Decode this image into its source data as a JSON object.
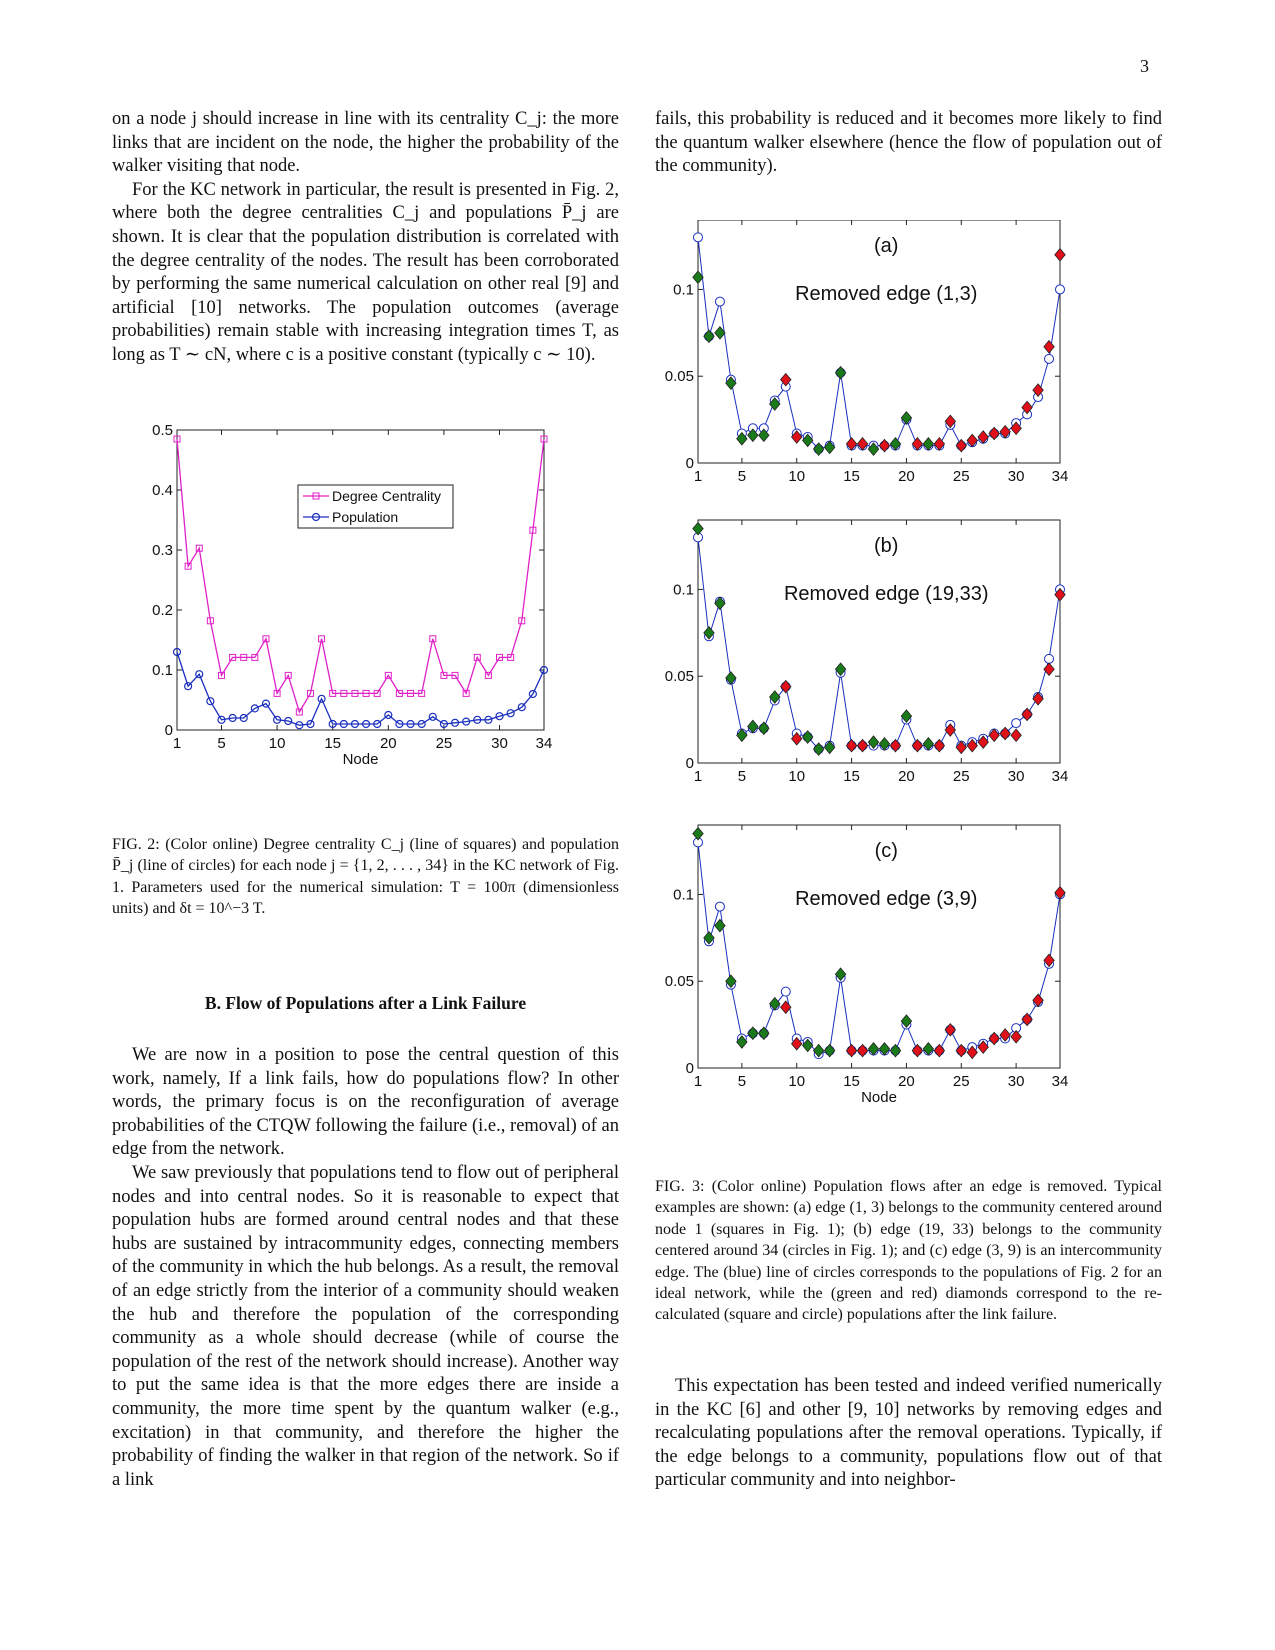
{
  "page": {
    "number": "3"
  },
  "text": {
    "left_top": [
      "on a node j should increase in line with its centrality C_j: the more links that are incident on the node, the higher the probability of the walker visiting that node.",
      "For the KC network in particular, the result is presented in Fig. 2, where both the degree centralities C_j and populations P̄_j are shown. It is clear that the population distribution is correlated with the degree centrality of the nodes. The result has been corroborated by performing the same numerical calculation on other real [9] and artificial [10] networks. The population outcomes (average probabilities) remain stable with increasing integration times T, as long as T ∼ cN, where c is a positive constant (typically c ∼ 10)."
    ],
    "right_top": "fails, this probability is reduced and it becomes more likely to find the quantum walker elsewhere (hence the flow of population out of the community).",
    "fig2_caption": "FIG. 2: (Color online) Degree centrality C_j (line of squares) and population P̄_j (line of circles) for each node j = {1, 2, . . . , 34} in the KC network of Fig. 1. Parameters used for the numerical simulation: T = 100π (dimensionless units) and δt = 10^−3 T.",
    "section_heading": "B.   Flow of Populations after a Link Failure",
    "left_bottom": [
      "We are now in a position to pose the central question of this work, namely, If a link fails, how do populations flow? In other words, the primary focus is on the reconfiguration of average probabilities of the CTQW following the failure (i.e., removal) of an edge from the network.",
      "We saw previously that populations tend to flow out of peripheral nodes and into central nodes. So it is reasonable to expect that population hubs are formed around central nodes and that these hubs are sustained by intracommunity edges, connecting members of the community in which the hub belongs. As a result, the removal of an edge strictly from the interior of a community should weaken the hub and therefore the population of the corresponding community as a whole should decrease (while of course the population of the rest of the network should increase). Another way to put the same idea is that the more edges there are inside a community, the more time spent by the quantum walker (e.g., excitation) in that community, and therefore the higher the probability of finding the walker in that region of the network. So if a link"
    ],
    "fig3_caption": "FIG. 3: (Color online) Population flows after an edge is removed. Typical examples are shown: (a) edge (1, 3) belongs to the community centered around node 1 (squares in Fig. 1); (b) edge (19, 33) belongs to the community centered around 34 (circles in Fig. 1); and (c) edge (3, 9) is an intercommunity edge. The (blue) line of circles corresponds to the populations of Fig. 2 for an ideal network, while the (green and red) diamonds correspond to the re-calculated (square and circle) populations after the link failure.",
    "right_bottom": "This expectation has been tested and indeed verified numerically in the KC [6] and other [9, 10] networks by removing edges and recalculating populations after the removal operations. Typically, if the edge belongs to a community, populations flow out of that particular community and into neighbor-"
  },
  "colors": {
    "degree": "#e020c8",
    "population": "#1a2fbf",
    "green": "#1a7a1a",
    "red": "#e0101a",
    "cite_green": "#2ecc40",
    "cite_red": "#e0151b"
  },
  "chart_data": [
    {
      "id": "fig2",
      "type": "line",
      "xlabel": "Node",
      "ylabel": "",
      "xlim": [
        1,
        34
      ],
      "ylim": [
        0,
        0.5
      ],
      "xticks": [
        1,
        5,
        10,
        15,
        20,
        25,
        30,
        34
      ],
      "yticks": [
        0,
        0.1,
        0.2,
        0.3,
        0.4,
        0.5
      ],
      "ytick_labels": [
        "0",
        "0.1",
        "0.2",
        "0.3",
        "0.4",
        "0.5"
      ],
      "legend": "upper-center",
      "x": [
        1,
        2,
        3,
        4,
        5,
        6,
        7,
        8,
        9,
        10,
        11,
        12,
        13,
        14,
        15,
        16,
        17,
        18,
        19,
        20,
        21,
        22,
        23,
        24,
        25,
        26,
        27,
        28,
        29,
        30,
        31,
        32,
        33,
        34
      ],
      "series": [
        {
          "name": "Degree Centrality",
          "marker": "square",
          "values": [
            0.485,
            0.273,
            0.303,
            0.182,
            0.091,
            0.121,
            0.121,
            0.121,
            0.152,
            0.061,
            0.091,
            0.03,
            0.061,
            0.152,
            0.061,
            0.061,
            0.061,
            0.061,
            0.061,
            0.091,
            0.061,
            0.061,
            0.061,
            0.152,
            0.091,
            0.091,
            0.061,
            0.121,
            0.091,
            0.121,
            0.121,
            0.182,
            0.333,
            0.485
          ]
        },
        {
          "name": "Population",
          "marker": "circle",
          "values": [
            0.13,
            0.073,
            0.093,
            0.048,
            0.017,
            0.02,
            0.02,
            0.036,
            0.044,
            0.017,
            0.015,
            0.008,
            0.01,
            0.052,
            0.01,
            0.01,
            0.01,
            0.01,
            0.01,
            0.025,
            0.01,
            0.01,
            0.01,
            0.022,
            0.01,
            0.012,
            0.014,
            0.017,
            0.017,
            0.023,
            0.028,
            0.038,
            0.06,
            0.1
          ]
        }
      ]
    },
    {
      "id": "fig3a",
      "type": "scatter",
      "panel_label": "(a)",
      "annotation": "Removed edge (1,3)",
      "xlim": [
        1,
        34
      ],
      "ylim": [
        0,
        0.14
      ],
      "xticks": [
        1,
        5,
        10,
        15,
        20,
        25,
        30,
        34
      ],
      "yticks": [
        0,
        0.05,
        0.1
      ],
      "ytick_labels": [
        "0",
        "0.05",
        "0.1"
      ],
      "x": [
        1,
        2,
        3,
        4,
        5,
        6,
        7,
        8,
        9,
        10,
        11,
        12,
        13,
        14,
        15,
        16,
        17,
        18,
        19,
        20,
        21,
        22,
        23,
        24,
        25,
        26,
        27,
        28,
        29,
        30,
        31,
        32,
        33,
        34
      ],
      "ideal_population": [
        0.13,
        0.073,
        0.093,
        0.048,
        0.017,
        0.02,
        0.02,
        0.036,
        0.044,
        0.017,
        0.015,
        0.008,
        0.01,
        0.052,
        0.01,
        0.01,
        0.01,
        0.01,
        0.01,
        0.025,
        0.01,
        0.01,
        0.01,
        0.022,
        0.01,
        0.012,
        0.014,
        0.017,
        0.017,
        0.023,
        0.028,
        0.038,
        0.06,
        0.1
      ],
      "after_failure": [
        0.107,
        0.073,
        0.075,
        0.046,
        0.014,
        0.016,
        0.016,
        0.034,
        0.048,
        0.015,
        0.013,
        0.008,
        0.009,
        0.052,
        0.011,
        0.011,
        0.008,
        0.01,
        0.011,
        0.026,
        0.011,
        0.011,
        0.011,
        0.024,
        0.01,
        0.013,
        0.015,
        0.017,
        0.018,
        0.02,
        0.032,
        0.042,
        0.067,
        0.12
      ],
      "diamond_colors": [
        "green",
        "green",
        "green",
        "green",
        "green",
        "green",
        "green",
        "green",
        "red",
        "red",
        "green",
        "green",
        "green",
        "green",
        "red",
        "red",
        "green",
        "red",
        "green",
        "green",
        "red",
        "green",
        "red",
        "red",
        "red",
        "red",
        "red",
        "red",
        "red",
        "red",
        "red",
        "red",
        "red",
        "red"
      ]
    },
    {
      "id": "fig3b",
      "type": "scatter",
      "panel_label": "(b)",
      "annotation": "Removed edge (19,33)",
      "xlim": [
        1,
        34
      ],
      "ylim": [
        0,
        0.14
      ],
      "xticks": [
        1,
        5,
        10,
        15,
        20,
        25,
        30,
        34
      ],
      "yticks": [
        0,
        0.05,
        0.1
      ],
      "ytick_labels": [
        "0",
        "0.05",
        "0.1"
      ],
      "x": [
        1,
        2,
        3,
        4,
        5,
        6,
        7,
        8,
        9,
        10,
        11,
        12,
        13,
        14,
        15,
        16,
        17,
        18,
        19,
        20,
        21,
        22,
        23,
        24,
        25,
        26,
        27,
        28,
        29,
        30,
        31,
        32,
        33,
        34
      ],
      "ideal_population": [
        0.13,
        0.073,
        0.093,
        0.048,
        0.017,
        0.02,
        0.02,
        0.036,
        0.044,
        0.017,
        0.015,
        0.008,
        0.01,
        0.052,
        0.01,
        0.01,
        0.01,
        0.01,
        0.01,
        0.025,
        0.01,
        0.01,
        0.01,
        0.022,
        0.01,
        0.012,
        0.014,
        0.017,
        0.017,
        0.023,
        0.028,
        0.038,
        0.06,
        0.1
      ],
      "after_failure": [
        0.135,
        0.075,
        0.092,
        0.049,
        0.016,
        0.021,
        0.02,
        0.038,
        0.044,
        0.014,
        0.015,
        0.008,
        0.009,
        0.054,
        0.01,
        0.01,
        0.012,
        0.011,
        0.01,
        0.027,
        0.01,
        0.011,
        0.01,
        0.019,
        0.009,
        0.01,
        0.012,
        0.016,
        0.017,
        0.016,
        0.028,
        0.037,
        0.054,
        0.097
      ],
      "diamond_colors": [
        "green",
        "green",
        "green",
        "green",
        "green",
        "green",
        "green",
        "green",
        "red",
        "red",
        "green",
        "green",
        "green",
        "green",
        "red",
        "red",
        "green",
        "green",
        "red",
        "green",
        "red",
        "green",
        "red",
        "red",
        "red",
        "red",
        "red",
        "red",
        "red",
        "red",
        "red",
        "red",
        "red",
        "red"
      ]
    },
    {
      "id": "fig3c",
      "type": "scatter",
      "panel_label": "(c)",
      "annotation": "Removed edge (3,9)",
      "xlabel": "Node",
      "xlim": [
        1,
        34
      ],
      "ylim": [
        0,
        0.14
      ],
      "xticks": [
        1,
        5,
        10,
        15,
        20,
        25,
        30,
        34
      ],
      "yticks": [
        0,
        0.05,
        0.1
      ],
      "ytick_labels": [
        "0",
        "0.05",
        "0.1"
      ],
      "x": [
        1,
        2,
        3,
        4,
        5,
        6,
        7,
        8,
        9,
        10,
        11,
        12,
        13,
        14,
        15,
        16,
        17,
        18,
        19,
        20,
        21,
        22,
        23,
        24,
        25,
        26,
        27,
        28,
        29,
        30,
        31,
        32,
        33,
        34
      ],
      "ideal_population": [
        0.13,
        0.073,
        0.093,
        0.048,
        0.017,
        0.02,
        0.02,
        0.036,
        0.044,
        0.017,
        0.015,
        0.008,
        0.01,
        0.052,
        0.01,
        0.01,
        0.01,
        0.01,
        0.01,
        0.025,
        0.01,
        0.01,
        0.01,
        0.022,
        0.01,
        0.012,
        0.014,
        0.017,
        0.017,
        0.023,
        0.028,
        0.038,
        0.06,
        0.1
      ],
      "after_failure": [
        0.135,
        0.075,
        0.082,
        0.05,
        0.015,
        0.02,
        0.02,
        0.037,
        0.035,
        0.014,
        0.013,
        0.01,
        0.01,
        0.054,
        0.01,
        0.01,
        0.011,
        0.011,
        0.01,
        0.027,
        0.01,
        0.011,
        0.01,
        0.022,
        0.01,
        0.009,
        0.012,
        0.017,
        0.019,
        0.018,
        0.028,
        0.039,
        0.062,
        0.101
      ],
      "diamond_colors": [
        "green",
        "green",
        "green",
        "green",
        "green",
        "green",
        "green",
        "green",
        "red",
        "red",
        "green",
        "green",
        "green",
        "green",
        "red",
        "red",
        "green",
        "green",
        "green",
        "green",
        "red",
        "green",
        "red",
        "red",
        "red",
        "red",
        "red",
        "red",
        "red",
        "red",
        "red",
        "red",
        "red",
        "red"
      ]
    }
  ]
}
